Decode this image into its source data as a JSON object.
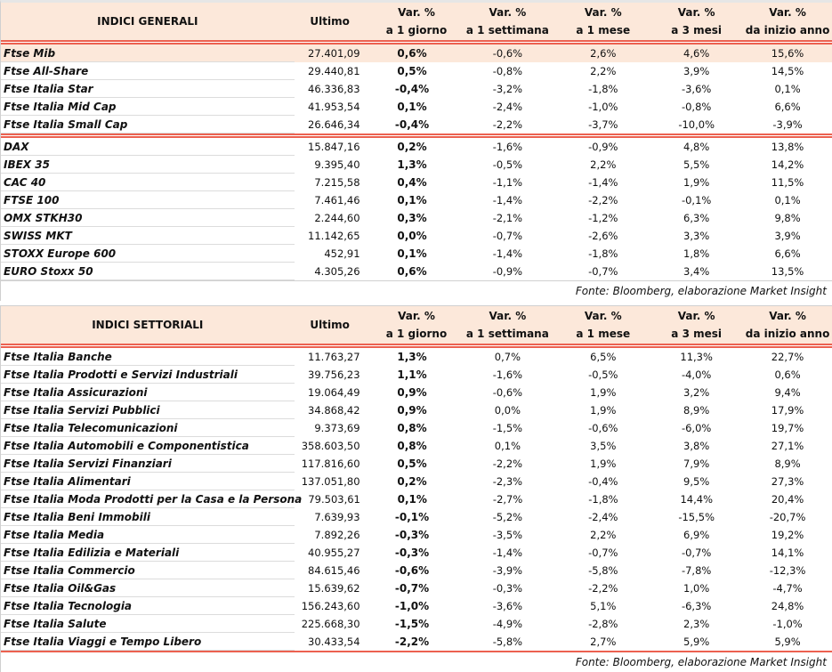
{
  "headers": [
    "Ultimo",
    "Var. %",
    "a 1 giorno",
    "Var. %",
    "a 1 settimana",
    "Var. %",
    "a 1 mese",
    "Var. %",
    "a 3 mesi",
    "Var. %",
    "da inizio anno"
  ],
  "accent_color": "#ec6150",
  "highlight_color": "#fce8da",
  "generali": {
    "title": "INDICI GENERALI",
    "group1": [
      [
        "Ftse Mib",
        "27.401,09",
        "0,6%",
        "-0,6%",
        "2,6%",
        "4,6%",
        "15,6%"
      ],
      [
        "Ftse All-Share",
        "29.440,81",
        "0,5%",
        "-0,8%",
        "2,2%",
        "3,9%",
        "14,5%"
      ],
      [
        "Ftse Italia Star",
        "46.336,83",
        "-0,4%",
        "-3,2%",
        "-1,8%",
        "-3,6%",
        "0,1%"
      ],
      [
        "Ftse Italia Mid Cap",
        "41.953,54",
        "0,1%",
        "-2,4%",
        "-1,0%",
        "-0,8%",
        "6,6%"
      ],
      [
        "Ftse Italia Small Cap",
        "26.646,34",
        "-0,4%",
        "-2,2%",
        "-3,7%",
        "-10,0%",
        "-3,9%"
      ]
    ],
    "group2": [
      [
        "DAX",
        "15.847,16",
        "0,2%",
        "-1,6%",
        "-0,9%",
        "4,8%",
        "13,8%"
      ],
      [
        "IBEX 35",
        "9.395,40",
        "1,3%",
        "-0,5%",
        "2,2%",
        "5,5%",
        "14,2%"
      ],
      [
        "CAC 40",
        "7.215,58",
        "0,4%",
        "-1,1%",
        "-1,4%",
        "1,9%",
        "11,5%"
      ],
      [
        "FTSE 100",
        "7.461,46",
        "0,1%",
        "-1,4%",
        "-2,2%",
        "-0,1%",
        "0,1%"
      ],
      [
        "OMX STKH30",
        "2.244,60",
        "0,3%",
        "-2,1%",
        "-1,2%",
        "6,3%",
        "9,8%"
      ],
      [
        "SWISS MKT",
        "11.142,65",
        "0,0%",
        "-0,7%",
        "-2,6%",
        "3,3%",
        "3,9%"
      ],
      [
        "STOXX Europe 600",
        "452,91",
        "0,1%",
        "-1,4%",
        "-1,8%",
        "1,8%",
        "6,6%"
      ],
      [
        "EURO Stoxx 50",
        "4.305,26",
        "0,6%",
        "-0,9%",
        "-0,7%",
        "3,4%",
        "13,5%"
      ]
    ],
    "source": "Fonte: Bloomberg, elaborazione Market Insight"
  },
  "settoriali": {
    "title": "INDICI SETTORIALI",
    "rows": [
      [
        "Ftse Italia Banche",
        "11.763,27",
        "1,3%",
        "0,7%",
        "6,5%",
        "11,3%",
        "22,7%"
      ],
      [
        "Ftse Italia Prodotti e Servizi Industriali",
        "39.756,23",
        "1,1%",
        "-1,6%",
        "-0,5%",
        "-4,0%",
        "0,6%"
      ],
      [
        "Ftse Italia Assicurazioni",
        "19.064,49",
        "0,9%",
        "-0,6%",
        "1,9%",
        "3,2%",
        "9,4%"
      ],
      [
        "Ftse Italia Servizi Pubblici",
        "34.868,42",
        "0,9%",
        "0,0%",
        "1,9%",
        "8,9%",
        "17,9%"
      ],
      [
        "Ftse Italia Telecomunicazioni",
        "9.373,69",
        "0,8%",
        "-1,5%",
        "-0,6%",
        "-6,0%",
        "19,7%"
      ],
      [
        "Ftse Italia Automobili e Componentistica",
        "358.603,50",
        "0,8%",
        "0,1%",
        "3,5%",
        "3,8%",
        "27,1%"
      ],
      [
        "Ftse Italia Servizi Finanziari",
        "117.816,60",
        "0,5%",
        "-2,2%",
        "1,9%",
        "7,9%",
        "8,9%"
      ],
      [
        "Ftse Italia Alimentari",
        "137.051,80",
        "0,2%",
        "-2,3%",
        "-0,4%",
        "9,5%",
        "27,3%"
      ],
      [
        "Ftse Italia Moda Prodotti per la Casa e la Persona",
        "79.503,61",
        "0,1%",
        "-2,7%",
        "-1,8%",
        "14,4%",
        "20,4%"
      ],
      [
        "Ftse Italia Beni Immobili",
        "7.639,93",
        "-0,1%",
        "-5,2%",
        "-2,4%",
        "-15,5%",
        "-20,7%"
      ],
      [
        "Ftse Italia Media",
        "7.892,26",
        "-0,3%",
        "-3,5%",
        "2,2%",
        "6,9%",
        "19,2%"
      ],
      [
        "Ftse Italia Edilizia e Materiali",
        "40.955,27",
        "-0,3%",
        "-1,4%",
        "-0,7%",
        "-0,7%",
        "14,1%"
      ],
      [
        "Ftse Italia Commercio",
        "84.615,46",
        "-0,6%",
        "-3,9%",
        "-5,8%",
        "-7,8%",
        "-12,3%"
      ],
      [
        "Ftse Italia Oil&Gas",
        "15.639,62",
        "-0,7%",
        "-0,3%",
        "-2,2%",
        "1,0%",
        "-4,7%"
      ],
      [
        "Ftse Italia Tecnologia",
        "156.243,60",
        "-1,0%",
        "-3,6%",
        "5,1%",
        "-6,3%",
        "24,8%"
      ],
      [
        "Ftse Italia Salute",
        "225.668,30",
        "-1,5%",
        "-4,9%",
        "-2,8%",
        "2,3%",
        "-1,0%"
      ],
      [
        "Ftse Italia Viaggi e Tempo Libero",
        "30.433,54",
        "-2,2%",
        "-5,8%",
        "2,7%",
        "5,9%",
        "5,9%"
      ]
    ],
    "source": "Fonte: Bloomberg, elaborazione Market Insight"
  }
}
